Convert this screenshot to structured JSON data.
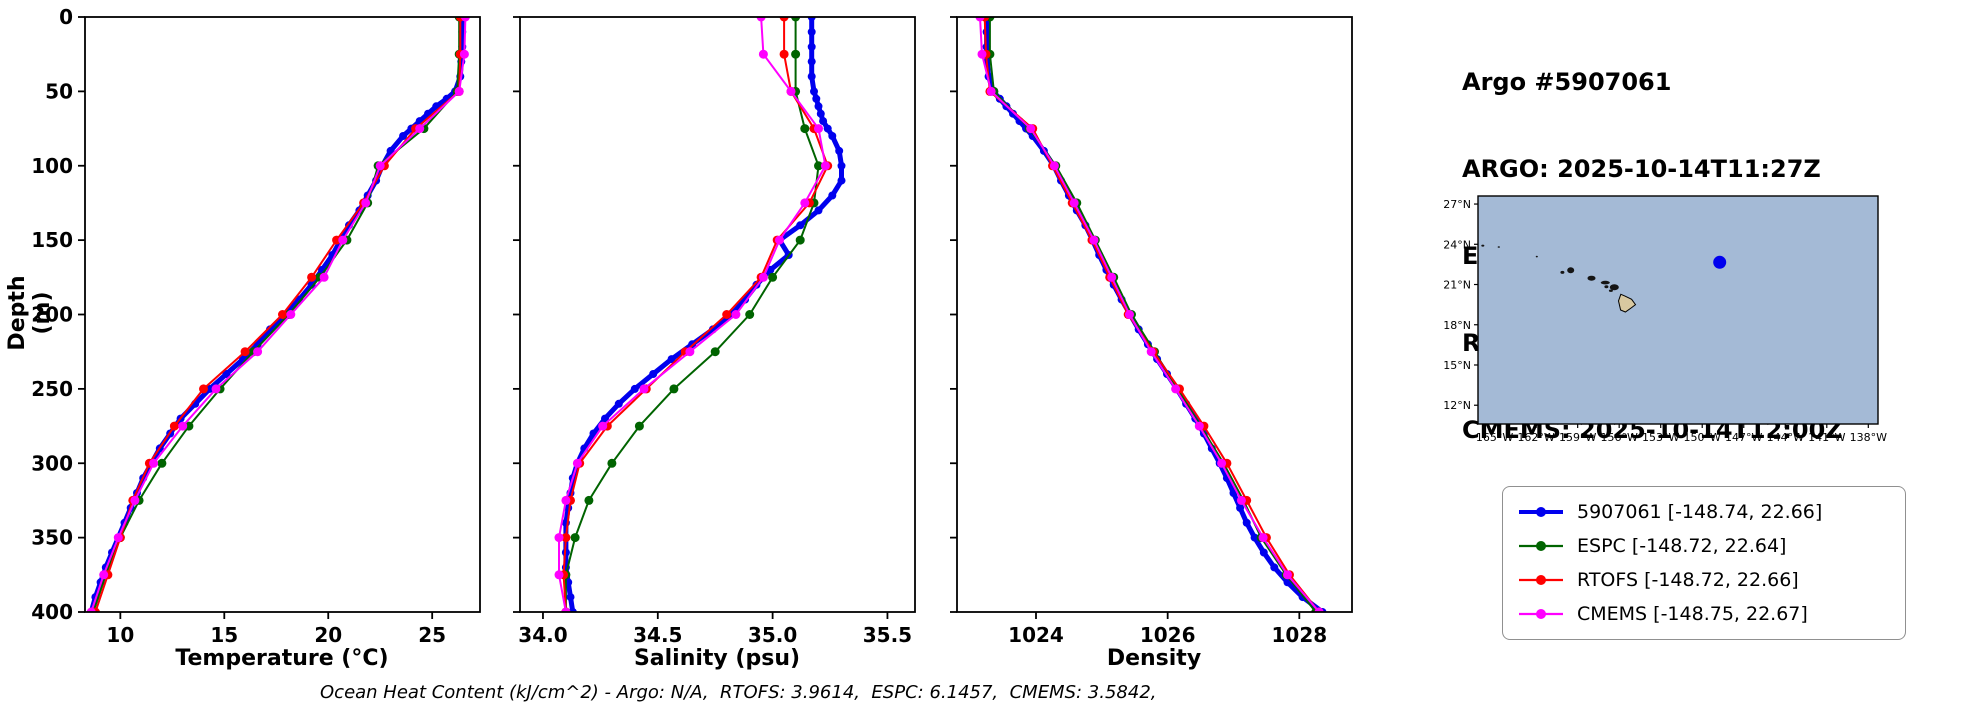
{
  "header": {
    "title": "Argo #5907061",
    "lines": [
      "ARGO: 2025-10-14T11:27Z",
      "ESPC : 2025-10-14T12:00Z",
      "RTOFS: 2025-10-14T12:00Z",
      "CMEMS: 2025-10-14T12:00Z"
    ]
  },
  "footer": {
    "caption": "Ocean Heat Content (kJ/cm^2) - Argo: N/A,  RTOFS: 3.9614,  ESPC: 6.1457,  CMEMS: 3.5842,"
  },
  "legend": {
    "items": [
      {
        "label": "5907061 [-148.74, 22.66]",
        "color": "#0000ee",
        "lw": 4,
        "marker_r": 5
      },
      {
        "label": "ESPC [-148.72, 22.64]",
        "color": "#006400",
        "lw": 2.2,
        "marker_r": 5
      },
      {
        "label": "RTOFS [-148.72, 22.66]",
        "color": "#ff0000",
        "lw": 2.2,
        "marker_r": 5
      },
      {
        "label": "CMEMS [-148.75, 22.67]",
        "color": "#ff00ff",
        "lw": 2.2,
        "marker_r": 5
      }
    ]
  },
  "chart_data": [
    {
      "type": "line",
      "name": "temperature",
      "xlabel": "Temperature (°C)",
      "ylabel": "Depth (m)",
      "xlim": [
        8.3,
        27.3
      ],
      "ylim": [
        0,
        400
      ],
      "xticks": [
        10,
        15,
        20,
        25
      ],
      "xtick_labels": [
        "10",
        "15",
        "20",
        "25"
      ],
      "yticks": [
        0,
        50,
        100,
        150,
        200,
        250,
        300,
        350,
        400
      ],
      "ytick_labels": [
        "0",
        "50",
        "100",
        "150",
        "200",
        "250",
        "300",
        "350",
        "400"
      ],
      "series": [
        {
          "name": "5907061",
          "color": "#0000ee",
          "lw": 5,
          "marker": true,
          "marker_size": 4,
          "depth": [
            0,
            10,
            20,
            30,
            40,
            50,
            55,
            60,
            65,
            70,
            75,
            80,
            90,
            100,
            110,
            120,
            130,
            140,
            150,
            160,
            170,
            180,
            190,
            200,
            210,
            220,
            230,
            240,
            250,
            260,
            270,
            280,
            290,
            300,
            310,
            320,
            330,
            340,
            350,
            360,
            370,
            380,
            390,
            400
          ],
          "values": [
            26.45,
            26.45,
            26.45,
            26.4,
            26.35,
            26.1,
            25.7,
            25.2,
            24.8,
            24.4,
            24.0,
            23.6,
            23.0,
            22.6,
            22.3,
            21.9,
            21.5,
            21.0,
            20.6,
            20.2,
            19.7,
            19.2,
            18.6,
            17.9,
            17.2,
            16.6,
            15.9,
            15.1,
            14.3,
            13.6,
            12.9,
            12.4,
            11.9,
            11.5,
            11.1,
            10.8,
            10.5,
            10.2,
            9.9,
            9.6,
            9.3,
            9.05,
            8.8,
            8.6
          ]
        },
        {
          "name": "ESPC",
          "color": "#006400",
          "lw": 2,
          "marker": true,
          "marker_size": 4.5,
          "depth": [
            0,
            25,
            50,
            75,
            100,
            125,
            150,
            175,
            200,
            225,
            250,
            275,
            300,
            325,
            350,
            375,
            400
          ],
          "values": [
            26.3,
            26.3,
            26.2,
            24.6,
            22.4,
            21.9,
            20.9,
            19.6,
            18.1,
            16.4,
            14.8,
            13.3,
            12.0,
            10.9,
            10.0,
            9.3,
            8.7
          ]
        },
        {
          "name": "RTOFS",
          "color": "#ff0000",
          "lw": 2,
          "marker": true,
          "marker_size": 4.5,
          "depth": [
            0,
            25,
            50,
            75,
            100,
            125,
            150,
            175,
            200,
            225,
            250,
            275,
            300,
            325,
            350,
            375,
            400
          ],
          "values": [
            26.35,
            26.35,
            26.3,
            24.2,
            22.7,
            21.7,
            20.4,
            19.2,
            17.8,
            16.0,
            14.0,
            12.6,
            11.4,
            10.6,
            10.0,
            9.4,
            8.8
          ]
        },
        {
          "name": "CMEMS",
          "color": "#ff00ff",
          "lw": 2,
          "marker": true,
          "marker_size": 4.5,
          "depth": [
            0,
            25,
            50,
            75,
            100,
            125,
            150,
            175,
            200,
            225,
            250,
            275,
            300,
            325,
            350,
            375,
            400
          ],
          "values": [
            26.6,
            26.55,
            26.3,
            24.4,
            22.5,
            21.8,
            20.7,
            19.8,
            18.2,
            16.6,
            14.6,
            13.0,
            11.6,
            10.7,
            9.9,
            9.2,
            8.6
          ]
        }
      ]
    },
    {
      "type": "line",
      "name": "salinity",
      "xlabel": "Salinity (psu)",
      "ylabel": "",
      "xlim": [
        33.9,
        35.62
      ],
      "ylim": [
        0,
        400
      ],
      "xticks": [
        34.0,
        34.5,
        35.0,
        35.5
      ],
      "xtick_labels": [
        "34.0",
        "34.5",
        "35.0",
        "35.5"
      ],
      "yticks": [
        0,
        50,
        100,
        150,
        200,
        250,
        300,
        350,
        400
      ],
      "ytick_labels": [
        "0",
        "50",
        "100",
        "150",
        "200",
        "250",
        "300",
        "350",
        "400"
      ],
      "series": [
        {
          "name": "5907061",
          "color": "#0000ee",
          "lw": 5,
          "marker": true,
          "marker_size": 4,
          "depth": [
            0,
            10,
            20,
            30,
            40,
            50,
            55,
            60,
            65,
            70,
            75,
            80,
            90,
            100,
            110,
            120,
            130,
            140,
            150,
            160,
            170,
            180,
            190,
            200,
            210,
            220,
            230,
            240,
            250,
            260,
            270,
            280,
            290,
            300,
            310,
            320,
            330,
            340,
            350,
            360,
            370,
            380,
            390,
            400
          ],
          "values": [
            35.17,
            35.17,
            35.17,
            35.17,
            35.17,
            35.18,
            35.19,
            35.2,
            35.21,
            35.22,
            35.24,
            35.26,
            35.29,
            35.3,
            35.3,
            35.26,
            35.2,
            35.12,
            35.03,
            35.07,
            34.99,
            34.93,
            34.88,
            34.82,
            34.74,
            34.65,
            34.56,
            34.48,
            34.4,
            34.33,
            34.27,
            34.22,
            34.18,
            34.15,
            34.13,
            34.12,
            34.11,
            34.1,
            34.1,
            34.1,
            34.1,
            34.11,
            34.12,
            34.13
          ]
        },
        {
          "name": "ESPC",
          "color": "#006400",
          "lw": 2,
          "marker": true,
          "marker_size": 4.5,
          "depth": [
            0,
            25,
            50,
            75,
            100,
            125,
            150,
            175,
            200,
            225,
            250,
            275,
            300,
            325,
            350,
            375,
            400
          ],
          "values": [
            35.1,
            35.1,
            35.1,
            35.14,
            35.2,
            35.18,
            35.12,
            35.0,
            34.9,
            34.75,
            34.57,
            34.42,
            34.3,
            34.2,
            34.14,
            34.1,
            34.1
          ]
        },
        {
          "name": "RTOFS",
          "color": "#ff0000",
          "lw": 2,
          "marker": true,
          "marker_size": 4.5,
          "depth": [
            0,
            25,
            50,
            75,
            100,
            125,
            150,
            175,
            200,
            225,
            250,
            275,
            300,
            325,
            350,
            375,
            400
          ],
          "values": [
            35.05,
            35.05,
            35.08,
            35.18,
            35.24,
            35.16,
            35.02,
            34.95,
            34.8,
            34.62,
            34.45,
            34.28,
            34.16,
            34.12,
            34.1,
            34.09,
            34.1
          ]
        },
        {
          "name": "CMEMS",
          "color": "#ff00ff",
          "lw": 2,
          "marker": true,
          "marker_size": 4.5,
          "depth": [
            0,
            25,
            50,
            75,
            100,
            125,
            150,
            175,
            200,
            225,
            250,
            275,
            300,
            325,
            350,
            375,
            400
          ],
          "values": [
            34.95,
            34.96,
            35.08,
            35.2,
            35.23,
            35.14,
            35.03,
            34.96,
            34.84,
            34.64,
            34.44,
            34.26,
            34.15,
            34.1,
            34.07,
            34.07,
            34.1
          ]
        }
      ]
    },
    {
      "type": "line",
      "name": "density",
      "xlabel": "Density",
      "ylabel": "",
      "xlim": [
        1022.8,
        1028.8
      ],
      "ylim": [
        0,
        400
      ],
      "xticks": [
        1024,
        1026,
        1028
      ],
      "xtick_labels": [
        "1024",
        "1026",
        "1028"
      ],
      "yticks": [
        0,
        50,
        100,
        150,
        200,
        250,
        300,
        350,
        400
      ],
      "ytick_labels": [
        "0",
        "50",
        "100",
        "150",
        "200",
        "250",
        "300",
        "350",
        "400"
      ],
      "series": [
        {
          "name": "5907061",
          "color": "#0000ee",
          "lw": 5,
          "marker": true,
          "marker_size": 4,
          "depth": [
            0,
            10,
            20,
            30,
            40,
            50,
            55,
            60,
            65,
            70,
            75,
            80,
            90,
            100,
            110,
            120,
            130,
            140,
            150,
            160,
            170,
            180,
            190,
            200,
            210,
            220,
            230,
            240,
            250,
            260,
            270,
            280,
            290,
            300,
            310,
            320,
            330,
            340,
            350,
            360,
            370,
            380,
            390,
            400
          ],
          "values": [
            1023.25,
            1023.25,
            1023.25,
            1023.26,
            1023.28,
            1023.35,
            1023.45,
            1023.55,
            1023.65,
            1023.75,
            1023.85,
            1023.95,
            1024.12,
            1024.27,
            1024.38,
            1024.5,
            1024.62,
            1024.75,
            1024.86,
            1024.96,
            1025.07,
            1025.18,
            1025.3,
            1025.43,
            1025.56,
            1025.7,
            1025.84,
            1025.99,
            1026.14,
            1026.28,
            1026.42,
            1026.55,
            1026.67,
            1026.79,
            1026.9,
            1027.0,
            1027.1,
            1027.2,
            1027.32,
            1027.46,
            1027.62,
            1027.82,
            1028.05,
            1028.35
          ]
        },
        {
          "name": "ESPC",
          "color": "#006400",
          "lw": 2,
          "marker": true,
          "marker_size": 4.5,
          "depth": [
            0,
            25,
            50,
            75,
            100,
            125,
            150,
            175,
            200,
            225,
            250,
            275,
            300,
            325,
            350,
            375,
            400
          ],
          "values": [
            1023.3,
            1023.3,
            1023.36,
            1023.9,
            1024.3,
            1024.62,
            1024.9,
            1025.18,
            1025.45,
            1025.8,
            1026.15,
            1026.5,
            1026.85,
            1027.15,
            1027.42,
            1027.8,
            1028.25
          ]
        },
        {
          "name": "RTOFS",
          "color": "#ff0000",
          "lw": 2,
          "marker": true,
          "marker_size": 4.5,
          "depth": [
            0,
            25,
            50,
            75,
            100,
            125,
            150,
            175,
            200,
            225,
            250,
            275,
            300,
            325,
            350,
            375,
            400
          ],
          "values": [
            1023.22,
            1023.24,
            1023.3,
            1023.95,
            1024.25,
            1024.55,
            1024.85,
            1025.12,
            1025.4,
            1025.78,
            1026.18,
            1026.55,
            1026.9,
            1027.2,
            1027.5,
            1027.85,
            1028.3
          ]
        },
        {
          "name": "CMEMS",
          "color": "#ff00ff",
          "lw": 2,
          "marker": true,
          "marker_size": 4.5,
          "depth": [
            0,
            25,
            50,
            75,
            100,
            125,
            150,
            175,
            200,
            225,
            250,
            275,
            300,
            325,
            350,
            375,
            400
          ],
          "values": [
            1023.15,
            1023.18,
            1023.32,
            1023.92,
            1024.28,
            1024.58,
            1024.88,
            1025.15,
            1025.42,
            1025.75,
            1026.12,
            1026.48,
            1026.82,
            1027.12,
            1027.45,
            1027.82,
            1028.3
          ]
        }
      ]
    }
  ],
  "map": {
    "xlim": [
      -166.2,
      -137.3
    ],
    "ylim": [
      10.6,
      27.6
    ],
    "xticks": [
      -165,
      -162,
      -159,
      -156,
      -153,
      -150,
      -147,
      -144,
      -141,
      -138
    ],
    "xtick_labels": [
      "165°W",
      "162°W",
      "159°W",
      "156°W",
      "153°W",
      "150°W",
      "147°W",
      "144°W",
      "141°W",
      "138°W"
    ],
    "yticks": [
      12,
      15,
      18,
      21,
      24,
      27
    ],
    "ytick_labels": [
      "12°N",
      "15°N",
      "18°N",
      "21°N",
      "24°N",
      "27°N"
    ],
    "ocean_color": "#a4bad6",
    "land_color": "#d8c8a0",
    "marker": {
      "lon": -148.74,
      "lat": 22.66,
      "color": "#0000ee"
    },
    "islands_points": [
      {
        "lon": -160.1,
        "lat": 21.9,
        "rx": 2.0,
        "ry": 1.5
      },
      {
        "lon": -159.5,
        "lat": 22.06,
        "rx": 3.5,
        "ry": 3.0
      },
      {
        "lon": -158.0,
        "lat": 21.47,
        "rx": 4.0,
        "ry": 2.5
      },
      {
        "lon": -157.0,
        "lat": 21.14,
        "rx": 4.5,
        "ry": 1.8
      },
      {
        "lon": -156.92,
        "lat": 20.83,
        "rx": 2.0,
        "ry": 1.5
      },
      {
        "lon": -156.35,
        "lat": 20.8,
        "rx": 4.5,
        "ry": 3.0
      },
      {
        "lon": -156.6,
        "lat": 20.54,
        "rx": 2.0,
        "ry": 1.2
      },
      {
        "lon": -165.85,
        "lat": 23.9,
        "rx": 1.5,
        "ry": 1.0
      },
      {
        "lon": -164.7,
        "lat": 23.8,
        "rx": 1.2,
        "ry": 0.8
      },
      {
        "lon": -161.95,
        "lat": 23.08,
        "rx": 1.0,
        "ry": 0.8
      }
    ],
    "big_island": [
      [
        -156.05,
        19.78
      ],
      [
        -155.88,
        20.27
      ],
      [
        -155.6,
        20.15
      ],
      [
        -155.1,
        19.9
      ],
      [
        -154.82,
        19.5
      ],
      [
        -155.1,
        19.28
      ],
      [
        -155.55,
        18.95
      ],
      [
        -155.9,
        19.1
      ]
    ]
  }
}
